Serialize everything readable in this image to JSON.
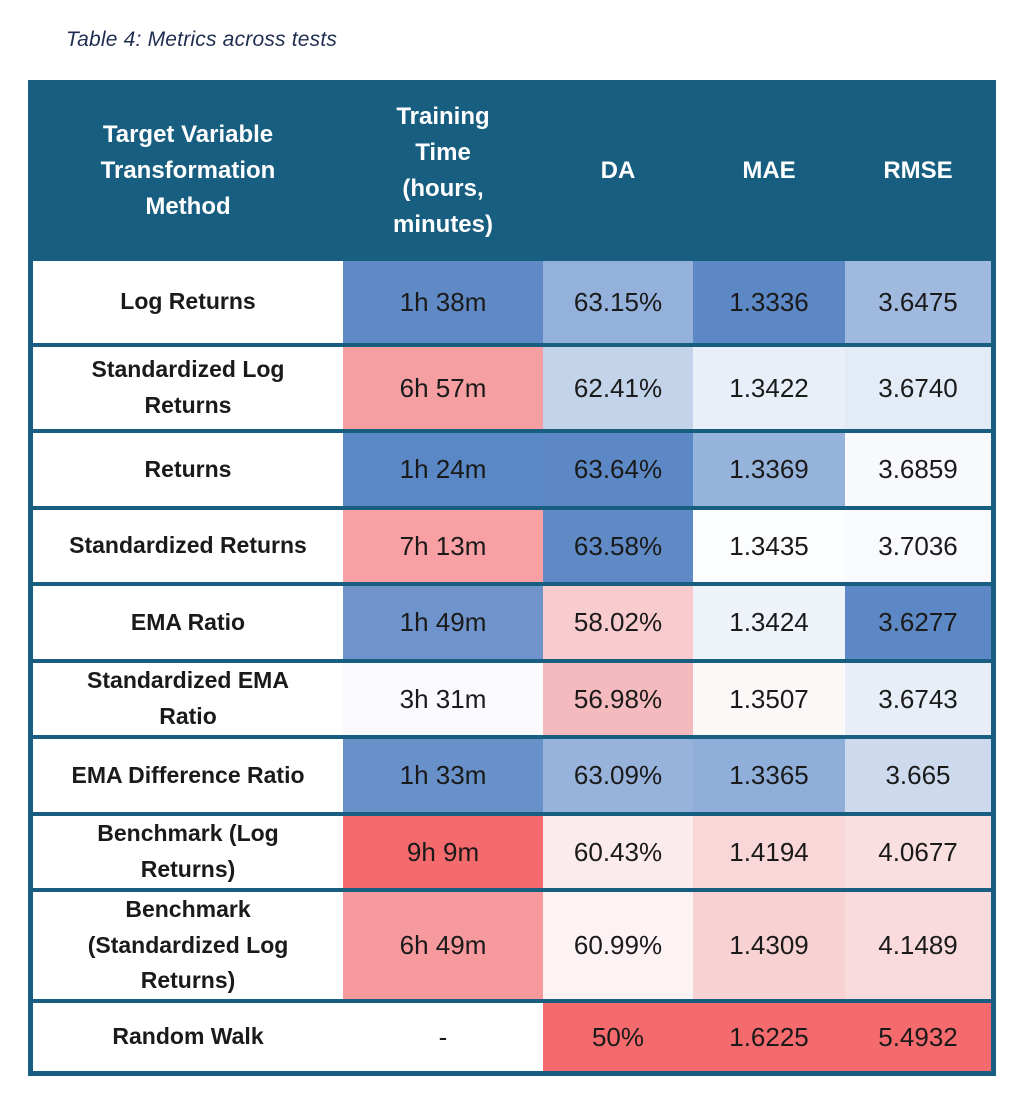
{
  "caption": "Table 4: Metrics across tests",
  "colors": {
    "teal": "#175E80",
    "header_text": "#FFFFFF",
    "body_text": "#1A1A1A",
    "caption_text": "#1F2D50",
    "best_blue": "#5C88C5",
    "worst_red": "#F56A6D"
  },
  "header": {
    "columns": [
      "Target Variable Transformation Method",
      "Training Time (hours, minutes)",
      "DA",
      "MAE",
      "RMSE"
    ]
  },
  "rows": [
    {
      "method": "Log Returns",
      "cells": [
        {
          "text": "1h 38m",
          "bg": "#5F8AC6"
        },
        {
          "text": "63.15%",
          "bg": "#93B1DA"
        },
        {
          "text": "1.3336",
          "bg": "#5C88C5"
        },
        {
          "text": "3.6475",
          "bg": "#A0BADF"
        }
      ]
    },
    {
      "method": "Standardized Log Returns",
      "cells": [
        {
          "text": "6h 57m",
          "bg": "#F59FA2"
        },
        {
          "text": "62.41%",
          "bg": "#C3D4EA"
        },
        {
          "text": "1.3422",
          "bg": "#E9EFF8"
        },
        {
          "text": "3.6740",
          "bg": "#E3EBF6"
        }
      ]
    },
    {
      "method": "Returns",
      "cells": [
        {
          "text": "1h 24m",
          "bg": "#5A87C5"
        },
        {
          "text": "63.64%",
          "bg": "#5C88C5"
        },
        {
          "text": "1.3369",
          "bg": "#96B3DB"
        },
        {
          "text": "3.6859",
          "bg": "#F7F9FD"
        }
      ]
    },
    {
      "method": "Standardized Returns",
      "cells": [
        {
          "text": "7h 13m",
          "bg": "#F8A0A4"
        },
        {
          "text": "63.58%",
          "bg": "#5F8AC6"
        },
        {
          "text": "1.3435",
          "bg": "#FCFDFE"
        },
        {
          "text": "3.7036",
          "bg": "#F9FAFD"
        }
      ]
    },
    {
      "method": "EMA Ratio",
      "cells": [
        {
          "text": "1h 49m",
          "bg": "#6E94CB"
        },
        {
          "text": "58.02%",
          "bg": "#F8CBCE"
        },
        {
          "text": "1.3424",
          "bg": "#EEF3FA"
        },
        {
          "text": "3.6277",
          "bg": "#5C88C5"
        }
      ]
    },
    {
      "method": "Standardized EMA Ratio",
      "cells": [
        {
          "text": "3h 31m",
          "bg": "#FAF9FD"
        },
        {
          "text": "56.98%",
          "bg": "#F5BABD"
        },
        {
          "text": "1.3507",
          "bg": "#FDF8F8"
        },
        {
          "text": "3.6743",
          "bg": "#E7EEF8"
        }
      ]
    },
    {
      "method": "EMA Difference Ratio",
      "cells": [
        {
          "text": "1h 33m",
          "bg": "#6890C9"
        },
        {
          "text": "63.09%",
          "bg": "#97B3DB"
        },
        {
          "text": "1.3365",
          "bg": "#8FAED9"
        },
        {
          "text": "3.665",
          "bg": "#CDD9ED"
        }
      ]
    },
    {
      "method": "Benchmark (Log Returns)",
      "cells": [
        {
          "text": "9h 9m",
          "bg": "#F56A6D"
        },
        {
          "text": "60.43%",
          "bg": "#FCEBEC"
        },
        {
          "text": "1.4194",
          "bg": "#F9D6D8"
        },
        {
          "text": "4.0677",
          "bg": "#FADFE1"
        }
      ]
    },
    {
      "method": "Benchmark (Standardized Log Returns)",
      "cells": [
        {
          "text": "6h 49m",
          "bg": "#F79A9D"
        },
        {
          "text": "60.99%",
          "bg": "#FDF3F4"
        },
        {
          "text": "1.4309",
          "bg": "#F8D1D3"
        },
        {
          "text": "4.1489",
          "bg": "#F9DBDD"
        }
      ]
    },
    {
      "method": "Random Walk",
      "cells": [
        {
          "text": "-",
          "bg": "#FFFFFF"
        },
        {
          "text": "50%",
          "bg": "#F56A6D"
        },
        {
          "text": "1.6225",
          "bg": "#F56A6D"
        },
        {
          "text": "5.4932",
          "bg": "#F56A6D"
        }
      ]
    }
  ],
  "chart_data": {
    "type": "table",
    "title": "Table 4: Metrics across tests",
    "columns": [
      "Target Variable Transformation Method",
      "Training Time (hours, minutes)",
      "DA",
      "MAE",
      "RMSE"
    ],
    "rows": [
      [
        "Log Returns",
        "1h 38m",
        "63.15%",
        "1.3336",
        "3.6475"
      ],
      [
        "Standardized Log Returns",
        "6h 57m",
        "62.41%",
        "1.3422",
        "3.6740"
      ],
      [
        "Returns",
        "1h 24m",
        "63.64%",
        "1.3369",
        "3.6859"
      ],
      [
        "Standardized Returns",
        "7h 13m",
        "63.58%",
        "1.3435",
        "3.7036"
      ],
      [
        "EMA Ratio",
        "1h 49m",
        "58.02%",
        "1.3424",
        "3.6277"
      ],
      [
        "Standardized EMA Ratio",
        "3h 31m",
        "56.98%",
        "1.3507",
        "3.6743"
      ],
      [
        "EMA Difference Ratio",
        "1h 33m",
        "63.09%",
        "1.3365",
        "3.665"
      ],
      [
        "Benchmark (Log Returns)",
        "9h 9m",
        "60.43%",
        "1.4194",
        "4.0677"
      ],
      [
        "Benchmark (Standardized Log Returns)",
        "6h 49m",
        "60.99%",
        "1.4309",
        "4.1489"
      ],
      [
        "Random Walk",
        "-",
        "50%",
        "1.6225",
        "5.4932"
      ]
    ],
    "layout_hints": {
      "conditional_formatting": "blue = better value, white = middle, red = worse value, per column",
      "header_style": "dark teal background, white bold text",
      "grid": "thick teal outer border and horizontal row separators"
    }
  }
}
